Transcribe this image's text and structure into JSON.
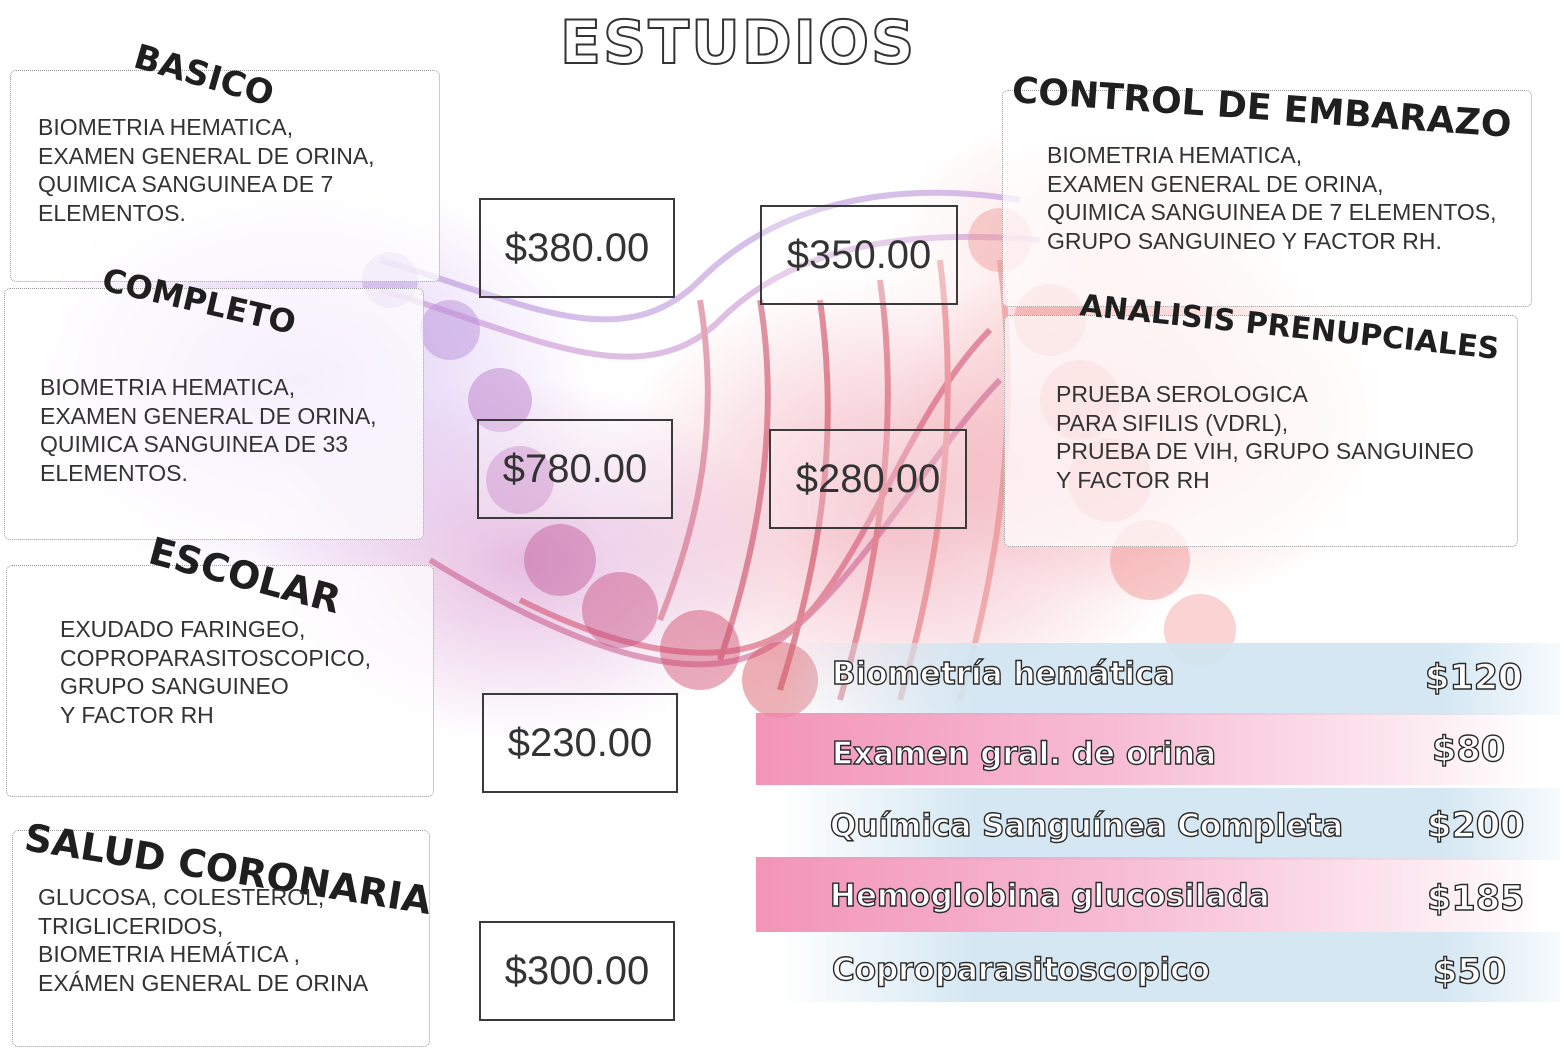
{
  "page": {
    "title": "ESTUDIOS"
  },
  "sections": [
    {
      "id": "basico",
      "title": "BASICO",
      "description": "BIOMETRIA HEMATICA,\nEXAMEN GENERAL DE ORINA,\nQUIMICA SANGUINEA DE 7\n ELEMENTOS.",
      "price": "$380.00"
    },
    {
      "id": "completo",
      "title": "COMPLETO",
      "description": "BIOMETRIA HEMATICA,\nEXAMEN GENERAL DE ORINA,\nQUIMICA SANGUINEA DE 33\nELEMENTOS.",
      "price": "$780.00"
    },
    {
      "id": "escolar",
      "title": "ESCOLAR",
      "description": "EXUDADO FARINGEO,\nCOPROPARASITOSCOPICO,\nGRUPO SANGUINEO\nY FACTOR RH",
      "price": "$230.00"
    },
    {
      "id": "salud-coronaria",
      "title": "SALUD CORONARIA",
      "description": "GLUCOSA, COLESTEROL,\nTRIGLICERIDOS,\nBIOMETRIA HEMÁTICA ,\nEXÁMEN GENERAL DE ORINA",
      "price": "$300.00"
    },
    {
      "id": "control-embarazo",
      "title": "CONTROL DE EMBARAZO",
      "description": "BIOMETRIA HEMATICA,\nEXAMEN GENERAL DE ORINA,\nQUIMICA SANGUINEA DE 7 ELEMENTOS,\nGRUPO SANGUINEO Y FACTOR RH.",
      "price": "$350.00"
    },
    {
      "id": "analisis-prenupciales",
      "title": "ANALISIS PRENUPCIALES",
      "description": "PRUEBA SEROLOGICA\nPARA SIFILIS (VDRL),\nPRUEBA DE VIH, GRUPO SANGUINEO\nY FACTOR RH",
      "price": "$280.00"
    }
  ],
  "individual_tests": [
    {
      "name": "Biometría hemática",
      "price": "$120"
    },
    {
      "name": "Examen gral. de orina",
      "price": "$80"
    },
    {
      "name": "Química Sanguínea Completa",
      "price": "$200"
    },
    {
      "name": "Hemoglobina glucosilada",
      "price": "$185"
    },
    {
      "name": "Coproparasitoscopico",
      "price": "$50"
    }
  ],
  "colors": {
    "text_dark": "#333333",
    "band_blue": "#d2e6f2",
    "band_pink": "#f082aa",
    "background_violet": "#be96eb",
    "background_red": "#dc3c5a"
  }
}
